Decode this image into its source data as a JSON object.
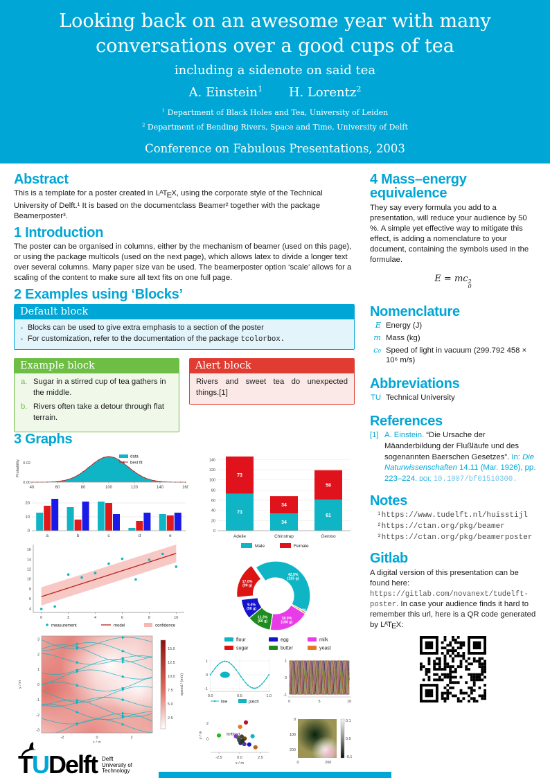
{
  "colors": {
    "cyan": "#00A6D6",
    "teal": "#0FB5C4",
    "green": "#6EBE46",
    "red": "#E03C31"
  },
  "header": {
    "title_line1": "Looking back on an awesome year with many",
    "title_line2": "conversations over a good cups of tea",
    "subtitle": "including a sidenote on said tea",
    "authors": [
      {
        "name": "A. Einstein",
        "sup": "1"
      },
      {
        "name": "H. Lorentz",
        "sup": "2"
      }
    ],
    "affiliations": [
      {
        "sup": "1",
        "text": " Department of Black Holes and Tea, University of Leiden"
      },
      {
        "sup": "2",
        "text": " Department of Bending Rivers, Space and Time, University of Delft"
      }
    ],
    "conference": "Conference on Fabulous Presentations, 2003"
  },
  "abstract": {
    "heading": "Abstract",
    "parts": [
      {
        "t": "This is a template for a poster created in ",
        "s": "plain"
      },
      {
        "t": "",
        "s": "latex"
      },
      {
        "t": ", using the corporate style of the Technical University of Delft.¹ It is based on the documentclass Beamer² together with the package Beamerposter³.",
        "s": "plain"
      }
    ]
  },
  "introduction": {
    "heading": "1 Introduction",
    "text": "The poster can be organised in columns, either by the mechanism of beamer (used on this page), or using the package multicols (used on the next page), which allows latex to divide a longer text over several columns. Many paper size van be used. The beamerposter option ‘scale’ allows for a scaling of the content to make sure all text fits on one full page."
  },
  "examples": {
    "heading": "2 Examples using ‘Blocks’",
    "default_block": {
      "title": "Default block",
      "items": [
        [
          {
            "t": "Blocks can be used to give extra emphasis to a section of the poster",
            "s": "plain"
          }
        ],
        [
          {
            "t": "For customization, refer to the documentation of the package ",
            "s": "plain"
          },
          {
            "t": "tcolorbox.",
            "s": "mono"
          }
        ]
      ]
    },
    "example_block": {
      "title": "Example block",
      "items": [
        {
          "label": "a.",
          "text": "Sugar in a stirred cup of tea gathers in the middle."
        },
        {
          "label": "b.",
          "text": "Rivers often take a detour through flat terrain."
        }
      ]
    },
    "alert_block": {
      "title": "Alert block",
      "text": "Rivers and sweet tea do unexpected things.[1]"
    }
  },
  "graphs_heading": "3 Graphs",
  "mass_energy": {
    "heading": "4 Mass–energy equivalence",
    "text": "They say every formula you add to a presentation, will reduce your audience by 50 %. A simple yet effective way to mitigate this effect, is adding a nomenclature to your document, containing the symbols used in the formulae.",
    "formula": {
      "pre": "E = mc",
      "sup": "2",
      "sub": "0"
    }
  },
  "nomenclature": {
    "heading": "Nomenclature",
    "rows": [
      {
        "sym": "E",
        "italic": true,
        "desc": "Energy (J)"
      },
      {
        "sym": "m",
        "italic": true,
        "desc": "Mass (kg)"
      },
      {
        "sym": "c₀",
        "italic": true,
        "desc": "Speed of light in vacuum (299.792 458 × 10⁶ m/s)"
      }
    ]
  },
  "abbreviations": {
    "heading": "Abbreviations",
    "rows": [
      {
        "sym": "TU",
        "desc": "Technical University"
      }
    ]
  },
  "references": {
    "heading": "References",
    "label": "[1]",
    "parts": [
      {
        "t": "A. Einstein. ",
        "s": "cyan"
      },
      {
        "t": "“Die Ursache der Mäanderbildung der Flußläufe und des sogenannten Baerschen Gesetzes”. ",
        "s": "plain"
      },
      {
        "t": "In: ",
        "s": "cyan"
      },
      {
        "t": "Die Naturwissenschaften",
        "s": "italic-cyan"
      },
      {
        "t": " 14.11 (Mar. 1926), pp. 223–224. ",
        "s": "cyan"
      },
      {
        "t": "doi: ",
        "s": "caps-cyan"
      },
      {
        "t": "10.1007/bf01510300.",
        "s": "mono-cyan"
      }
    ]
  },
  "notes": {
    "heading": "Notes",
    "items": [
      "¹https://www.tudelft.nl/huisstijl",
      "²https://ctan.org/pkg/beamer",
      "³https://ctan.org/pkg/beamerposter"
    ]
  },
  "gitlab": {
    "heading": "Gitlab",
    "parts": [
      {
        "t": "A digital version of this presentation can be found here: ",
        "s": "plain"
      },
      {
        "t": "https://gitlab.com/novanext/tudelft-poster",
        "s": "mono-gray"
      },
      {
        "t": ". In case your audience finds it hard to remember this url, here is a QR code generated by ",
        "s": "plain"
      },
      {
        "t": "",
        "s": "latex"
      },
      {
        "t": ":",
        "s": "plain"
      }
    ]
  },
  "logo": {
    "t": "T",
    "u": "U",
    "delft": "Delft",
    "tagline": [
      "Delft",
      "University of",
      "Technology"
    ]
  },
  "chart_data": [
    {
      "type": "histogram",
      "ylabel": "Probability",
      "xlim": [
        40,
        160
      ],
      "ylim": [
        0,
        0.03
      ],
      "x_ticks": [
        40,
        60,
        80,
        100,
        120,
        140,
        160
      ],
      "y_ticks": [
        "0.00",
        "0.02"
      ],
      "mean": 100,
      "sigma": 15,
      "peak": 0.0266,
      "legend": [
        {
          "label": "data",
          "color": "#0FB5C4"
        },
        {
          "label": "best fit",
          "color": "#C22020"
        }
      ]
    },
    {
      "type": "grouped_bar",
      "categories": [
        "a",
        "b",
        "c",
        "d",
        "e"
      ],
      "ylim": [
        0,
        24
      ],
      "y_ticks": [
        0,
        10,
        20
      ],
      "series": [
        {
          "color": "#0FB5C4",
          "values": [
            13,
            17,
            21,
            2,
            12
          ]
        },
        {
          "color": "#E01A1A",
          "values": [
            18,
            8,
            20,
            7,
            11
          ]
        },
        {
          "color": "#1A1AE8",
          "values": [
            23,
            21,
            12,
            13,
            13
          ]
        }
      ]
    },
    {
      "type": "stacked_bar",
      "categories": [
        "Adelie",
        "Chinstrap",
        "Gentoo"
      ],
      "ylim": [
        0,
        150
      ],
      "y_ticks": [
        0,
        20,
        40,
        60,
        80,
        100,
        120,
        140
      ],
      "series": [
        {
          "name": "Male",
          "color": "#0FB5C4",
          "values": [
            73,
            34,
            61
          ]
        },
        {
          "name": "Female",
          "color": "#E0131C",
          "values": [
            73,
            34,
            58
          ]
        }
      ]
    },
    {
      "type": "regression",
      "xlim": [
        -0.6,
        10.6
      ],
      "ylim": [
        3.2,
        17
      ],
      "x_ticks": [
        0,
        2,
        4,
        6,
        8,
        10
      ],
      "y_ticks": [
        4,
        6,
        8,
        10,
        12,
        14,
        16
      ],
      "points": [
        [
          0,
          3.9
        ],
        [
          1,
          4.4
        ],
        [
          2,
          10.9
        ],
        [
          3,
          10.3
        ],
        [
          4,
          11.2
        ],
        [
          5,
          13.1
        ],
        [
          6,
          14.1
        ],
        [
          7,
          9.9
        ],
        [
          8,
          13.9
        ],
        [
          9,
          15.1
        ],
        [
          10,
          12.5
        ]
      ],
      "model": [
        [
          0,
          6.4
        ],
        [
          10,
          15.2
        ]
      ],
      "band_upper": [
        [
          0,
          8.3
        ],
        [
          10,
          17.0
        ]
      ],
      "band_lower": [
        [
          0,
          4.6
        ],
        [
          10,
          13.4
        ]
      ],
      "point_color": "#0FB5C4",
      "line_color": "#B3261E",
      "band_color": "#F6B6B2",
      "legend": [
        {
          "label": "measurement"
        },
        {
          "label": "model"
        },
        {
          "label": "confidence"
        }
      ]
    },
    {
      "type": "donut",
      "start_deg": -35,
      "slices": [
        {
          "label": "flour",
          "pct": "42.5",
          "grams": 225,
          "color": "#0FB5C4"
        },
        {
          "label": "yeast",
          "pct": "0.9",
          "grams": 5,
          "color": "#E87722"
        },
        {
          "label": "milk",
          "pct": "18.9",
          "grams": 100,
          "color": "#E93CE9"
        },
        {
          "label": "butter",
          "pct": "11.3",
          "grams": 60,
          "color": "#1E8C1E"
        },
        {
          "label": "egg",
          "pct": "9.4",
          "grams": 50,
          "color": "#1414CC"
        },
        {
          "label": "sugar",
          "pct": "17.0",
          "grams": 90,
          "color": "#DC1414",
          "explode": true
        }
      ],
      "legend_order": [
        "flour",
        "egg",
        "milk",
        "sugar",
        "butter",
        "yeast"
      ]
    },
    {
      "type": "stream",
      "xlabel": "x / m",
      "ylabel": "y / m",
      "x_ticks": [
        -2,
        0,
        2
      ],
      "y_ticks": [
        -3,
        -2,
        -1,
        0,
        1,
        2,
        3
      ],
      "cbar_label": "speed / (m/s)",
      "cbar_ticks": [
        "2.5",
        "5.0",
        "7.5",
        "10.0",
        "12.5",
        "15.0"
      ],
      "line_color": "#0FB5C4"
    },
    {
      "type": "sine_patch",
      "x_ticks": [
        "0.0",
        "0.5",
        "1.0"
      ],
      "y_ticks": [
        -1,
        0,
        1
      ],
      "legend": [
        {
          "label": "line"
        },
        {
          "label": "patch"
        }
      ],
      "color": "#0FB5C4"
    },
    {
      "type": "multi_sine",
      "x_ticks": [
        0,
        5,
        10
      ],
      "y_ticks": [
        -1,
        0,
        1
      ],
      "n": 21,
      "palette": [
        "#1f77b4",
        "#ff7f0e",
        "#2ca02c",
        "#d62728",
        "#9467bd",
        "#8c564b",
        "#e377c2",
        "#7f7f7f",
        "#bcbd22",
        "#17becf",
        "#d62790",
        "#111111"
      ]
    },
    {
      "type": "scatter_cloud",
      "xlabel": "x / m",
      "ylabel": "y / m",
      "x_ticks": [
        "-2.5",
        "0.0",
        "2.5"
      ],
      "y_ticks": [
        0,
        2
      ],
      "annotation": "\\leftfood",
      "points": [
        [
          -2.5,
          0.45,
          "#22bb22"
        ],
        [
          0.05,
          1.55,
          "#e87722"
        ],
        [
          0.75,
          2.1,
          "#bb1122"
        ],
        [
          -0.45,
          0.35,
          "#8a2be2"
        ],
        [
          -0.15,
          0.15,
          "#556b2f"
        ],
        [
          0.25,
          0.3,
          "#444444"
        ],
        [
          0.6,
          0.05,
          "#7b3f00"
        ],
        [
          1.55,
          0.35,
          "#0FB5C4"
        ],
        [
          0.1,
          -0.5,
          "#3f2a56"
        ],
        [
          0.55,
          -0.65,
          "#5533aa"
        ],
        [
          1.15,
          -0.7,
          "#1414cc"
        ],
        [
          1.9,
          -1.05,
          "#b5651d"
        ],
        [
          -0.05,
          -0.15,
          "#2f4f4f"
        ],
        [
          0.35,
          -0.25,
          "#203820"
        ]
      ]
    },
    {
      "type": "heatmap",
      "x_ticks": [
        0,
        200
      ],
      "y_ticks": [
        0,
        100,
        200
      ],
      "cbar_ticks": [
        "0.1",
        "0.0",
        "-0.1"
      ],
      "bg": "#9c9455"
    }
  ]
}
